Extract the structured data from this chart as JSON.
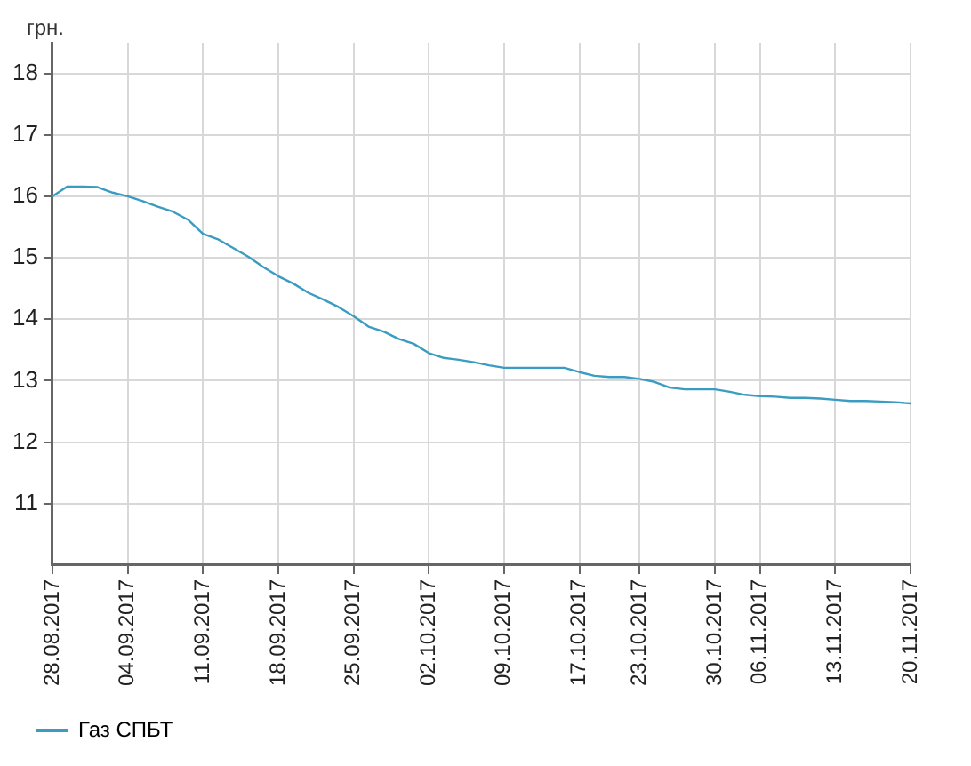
{
  "chart_data": {
    "type": "line",
    "ylabel": "грн.",
    "categories": [
      "28.08.2017",
      null,
      null,
      null,
      null,
      "04.09.2017",
      null,
      null,
      null,
      null,
      "11.09.2017",
      null,
      null,
      null,
      null,
      "18.09.2017",
      null,
      null,
      null,
      null,
      "25.09.2017",
      null,
      null,
      null,
      null,
      "02.10.2017",
      null,
      null,
      null,
      null,
      "09.10.2017",
      null,
      null,
      null,
      null,
      "17.10.2017",
      null,
      null,
      null,
      "23.10.2017",
      null,
      null,
      null,
      null,
      "30.10.2017",
      null,
      null,
      "06.11.2017",
      null,
      null,
      null,
      null,
      "13.11.2017",
      null,
      null,
      null,
      null,
      "20.11.2017"
    ],
    "series": [
      {
        "name": "Газ СПБТ",
        "color": "#3a9cc0",
        "values": [
          16.0,
          16.16,
          16.16,
          16.15,
          16.06,
          16.0,
          15.92,
          15.83,
          15.75,
          15.62,
          15.39,
          15.3,
          15.16,
          15.02,
          14.85,
          14.7,
          14.58,
          14.43,
          14.32,
          14.2,
          14.05,
          13.88,
          13.8,
          13.68,
          13.6,
          13.45,
          13.37,
          13.34,
          13.3,
          13.25,
          13.21,
          13.21,
          13.21,
          13.21,
          13.21,
          13.14,
          13.08,
          13.06,
          13.06,
          13.03,
          12.98,
          12.89,
          12.86,
          12.86,
          12.86,
          12.82,
          12.77,
          12.75,
          12.74,
          12.72,
          12.72,
          12.71,
          12.69,
          12.67,
          12.67,
          12.66,
          12.65,
          12.63
        ]
      }
    ],
    "ylim": [
      10,
      18.5
    ],
    "yticks": [
      11,
      12,
      13,
      14,
      15,
      16,
      17,
      18
    ],
    "grid": true,
    "legend": "bottom left",
    "marker": "none",
    "line_style": "solid"
  }
}
